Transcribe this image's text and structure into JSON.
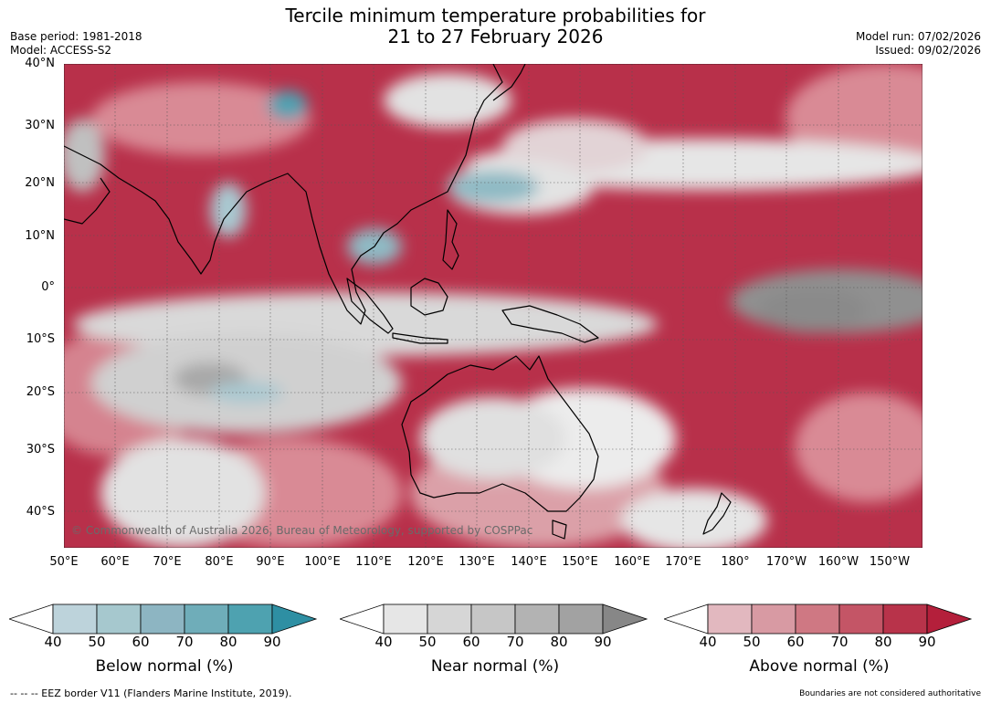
{
  "header": {
    "title_line1": "Tercile minimum temperature probabilities for",
    "title_line2": "21 to 27 February 2026",
    "base_period": "Base period: 1981-2018",
    "model": "Model: ACCESS-S2",
    "model_run": "Model run: 07/02/2026",
    "issued": "Issued: 09/02/2026"
  },
  "map": {
    "lat_labels": [
      "40°N",
      "30°N",
      "20°N",
      "10°N",
      "0°",
      "10°S",
      "20°S",
      "30°S",
      "40°S"
    ],
    "lon_labels": [
      "50°E",
      "60°E",
      "70°E",
      "80°E",
      "90°E",
      "100°E",
      "110°E",
      "120°E",
      "130°E",
      "140°E",
      "150°E",
      "160°E",
      "170°E",
      "180°",
      "170°W",
      "160°W",
      "150°W"
    ],
    "copyright": "© Commonwealth of Australia 2026, Bureau of Meteorology, supported by COSPPac"
  },
  "colorbars": [
    {
      "title": "Below normal (%)",
      "ticks": [
        "40",
        "50",
        "60",
        "70",
        "80",
        "90"
      ],
      "colors": [
        "#ffffff",
        "#bdd3db",
        "#a6c8ce",
        "#8db5c2",
        "#6fadb9",
        "#4ea2b0",
        "#2e8fa3"
      ]
    },
    {
      "title": "Near normal (%)",
      "ticks": [
        "40",
        "50",
        "60",
        "70",
        "80",
        "90"
      ],
      "colors": [
        "#ffffff",
        "#e6e6e6",
        "#d6d6d6",
        "#c6c6c6",
        "#b3b3b3",
        "#a2a2a2",
        "#878787"
      ]
    },
    {
      "title": "Above normal (%)",
      "ticks": [
        "40",
        "50",
        "60",
        "70",
        "80",
        "90"
      ],
      "colors": [
        "#ffffff",
        "#e2b8bf",
        "#d89aa3",
        "#cf7883",
        "#c45566",
        "#b8334a",
        "#b41f3b"
      ]
    }
  ],
  "footer": {
    "eez_note": "--  --  -- EEZ border V11 (Flanders Marine Institute, 2019).",
    "boundaries_note": "Boundaries are not considered authoritative"
  }
}
